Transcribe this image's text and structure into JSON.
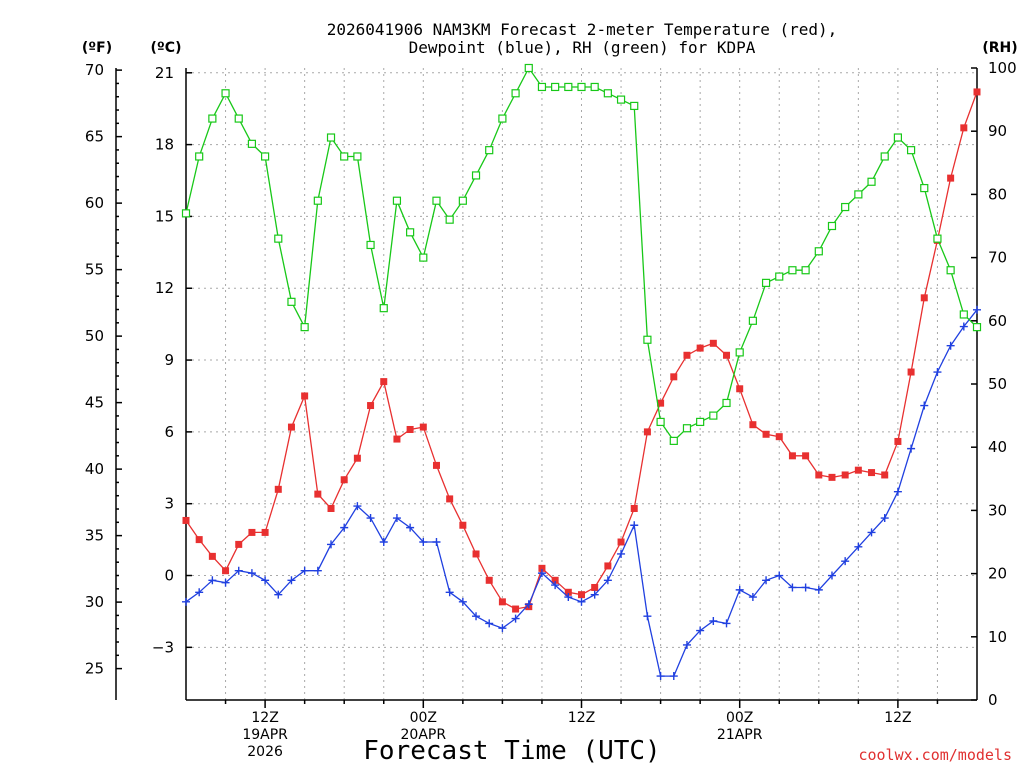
{
  "chart_data": {
    "type": "line",
    "title_line1": "2026041906 NAM3KM Forecast 2-meter Temperature (red),",
    "title_line2": "Dewpoint (blue), RH (green) for KDPA",
    "xlabel": "Forecast Time (UTC)",
    "credit": "coolwx.com/models",
    "left_outer_unit": "(ºF)",
    "left_inner_unit": "(ºC)",
    "right_unit": "(RH)",
    "fahrenheit_ticks": [
      "70",
      "65",
      "60",
      "55",
      "50",
      "45",
      "40",
      "35",
      "30",
      "25"
    ],
    "celsius_ticks": [
      "21",
      "18",
      "15",
      "12",
      "9",
      "6",
      "3",
      "0",
      "−3"
    ],
    "rh_ticks": [
      "100",
      "90",
      "80",
      "70",
      "60",
      "50",
      "40",
      "30",
      "20",
      "10",
      "0"
    ],
    "celsius_range": [
      -5.2,
      21.2
    ],
    "rh_range": [
      0,
      100
    ],
    "x_range_hours": [
      6,
      66
    ],
    "x_tick_labels": [
      {
        "hour": 12,
        "lines": [
          "12Z",
          "19APR",
          "2026"
        ]
      },
      {
        "hour": 24,
        "lines": [
          "00Z",
          "20APR"
        ]
      },
      {
        "hour": 36,
        "lines": [
          "12Z"
        ]
      },
      {
        "hour": 48,
        "lines": [
          "00Z",
          "21APR"
        ]
      },
      {
        "hour": 60,
        "lines": [
          "12Z"
        ]
      }
    ],
    "series": [
      {
        "name": "2-meter Temperature (°C)",
        "axis": "celsius",
        "color": "#e83030",
        "marker": "filled-square",
        "values": [
          2.3,
          1.5,
          0.8,
          0.2,
          1.3,
          1.8,
          1.8,
          3.6,
          6.2,
          7.5,
          3.4,
          2.8,
          4.0,
          4.9,
          7.1,
          8.1,
          5.7,
          6.1,
          6.2,
          4.6,
          3.2,
          2.1,
          0.9,
          -0.2,
          -1.1,
          -1.4,
          -1.3,
          0.3,
          -0.2,
          -0.7,
          -0.8,
          -0.5,
          0.4,
          1.4,
          2.8,
          6.0,
          7.2,
          8.3,
          9.2,
          9.5,
          9.7,
          9.2,
          7.8,
          6.3,
          5.9,
          5.8,
          5.0,
          5.0,
          4.2,
          4.1,
          4.2,
          4.4,
          4.3,
          4.2,
          5.6,
          8.5,
          11.6,
          14.0,
          16.6,
          18.7,
          20.2
        ]
      },
      {
        "name": "Dewpoint (°C)",
        "axis": "celsius",
        "color": "#2040e0",
        "marker": "plus",
        "values": [
          -1.1,
          -0.7,
          -0.2,
          -0.3,
          0.2,
          0.1,
          -0.2,
          -0.8,
          -0.2,
          0.2,
          0.2,
          1.3,
          2.0,
          2.9,
          2.4,
          1.4,
          2.4,
          2.0,
          1.4,
          1.4,
          -0.7,
          -1.1,
          -1.7,
          -2.0,
          -2.2,
          -1.8,
          -1.2,
          0.1,
          -0.4,
          -0.9,
          -1.1,
          -0.8,
          -0.2,
          0.9,
          2.1,
          -1.7,
          -4.2,
          -4.2,
          -2.9,
          -2.3,
          -1.9,
          -2.0,
          -0.6,
          -0.9,
          -0.2,
          0.0,
          -0.5,
          -0.5,
          -0.6,
          0.0,
          0.6,
          1.2,
          1.8,
          2.4,
          3.5,
          5.3,
          7.1,
          8.5,
          9.6,
          10.4,
          11.1
        ]
      },
      {
        "name": "RH (%)",
        "axis": "rh",
        "color": "#18c818",
        "marker": "open-square",
        "values": [
          77,
          86,
          92,
          96,
          92,
          88,
          86,
          73,
          63,
          59,
          79,
          89,
          86,
          86,
          72,
          62,
          79,
          74,
          70,
          79,
          76,
          79,
          83,
          87,
          92,
          96,
          100,
          97,
          97,
          97,
          97,
          97,
          96,
          95,
          94,
          57,
          44,
          41,
          43,
          44,
          45,
          47,
          55,
          60,
          66,
          67,
          68,
          68,
          71,
          75,
          78,
          80,
          82,
          86,
          89,
          87,
          81,
          73,
          68,
          61,
          59
        ]
      }
    ]
  }
}
